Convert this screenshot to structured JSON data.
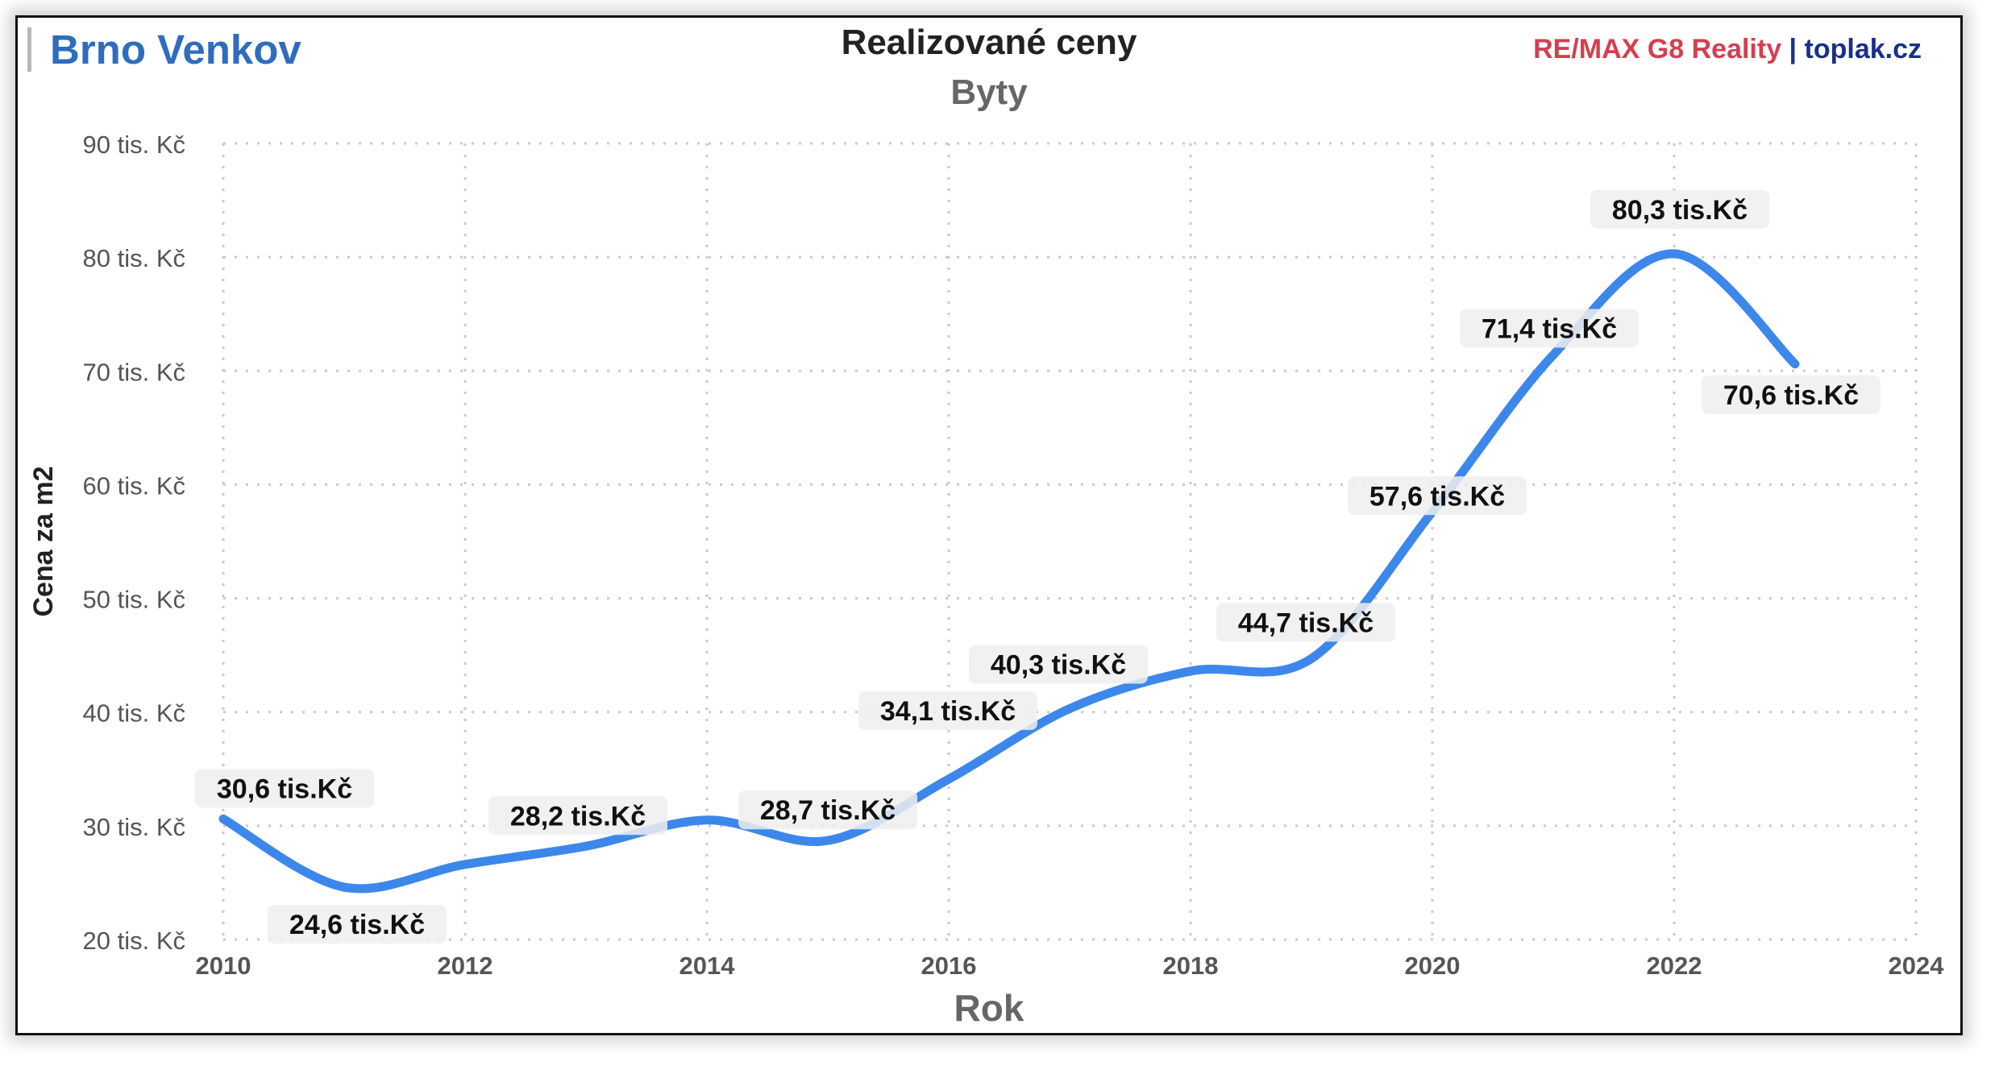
{
  "header": {
    "brand": "Brno Venkov",
    "credit_remax": "RE/MAX G8 Reality",
    "credit_sep": " | ",
    "credit_site": "toplak.cz"
  },
  "colors": {
    "brand": "#2e6cbf",
    "line": "#3d87ea",
    "credit_red": "#d43f4f",
    "credit_blue": "#1a2f8a",
    "label_bg": "#eeeeee"
  },
  "chart_data": {
    "type": "line",
    "title": "Realizované ceny",
    "subtitle": "Byty",
    "xlabel": "Rok",
    "ylabel": "Cena za m2",
    "xlim": [
      2010,
      2024
    ],
    "ylim": [
      20,
      90
    ],
    "x_ticks": [
      2010,
      2012,
      2014,
      2016,
      2018,
      2020,
      2022,
      2024
    ],
    "x_tick_labels": [
      "2010",
      "2012",
      "2014",
      "2016",
      "2018",
      "2020",
      "2022",
      "2024"
    ],
    "y_ticks": [
      20,
      30,
      40,
      50,
      60,
      70,
      80,
      90
    ],
    "y_tick_labels": [
      "20 tis. Kč",
      "30 tis. Kč",
      "40 tis. Kč",
      "50 tis. Kč",
      "60 tis. Kč",
      "70 tis. Kč",
      "80 tis. Kč",
      "90 tis. Kč"
    ],
    "grid": true,
    "smooth": true,
    "x": [
      2010,
      2011,
      2012,
      2013,
      2014,
      2015,
      2016,
      2017,
      2018,
      2019,
      2020,
      2021,
      2022,
      2023
    ],
    "y": [
      30.6,
      24.6,
      26.6,
      28.2,
      30.5,
      28.7,
      34.1,
      40.3,
      43.6,
      44.7,
      57.6,
      71.4,
      80.3,
      70.6
    ],
    "data_labels": [
      {
        "x": 2010,
        "text": "30,6 tis.Kč"
      },
      {
        "x": 2011,
        "text": "24,6 tis.Kč"
      },
      {
        "x": 2013,
        "text": "28,2 tis.Kč"
      },
      {
        "x": 2015,
        "text": "28,7 tis.Kč"
      },
      {
        "x": 2016,
        "text": "34,1 tis.Kč"
      },
      {
        "x": 2017,
        "text": "40,3 tis.Kč"
      },
      {
        "x": 2019,
        "text": "44,7 tis.Kč"
      },
      {
        "x": 2020,
        "text": "57,6 tis.Kč"
      },
      {
        "x": 2021,
        "text": "71,4 tis.Kč"
      },
      {
        "x": 2022,
        "text": "80,3 tis.Kč"
      },
      {
        "x": 2023,
        "text": "70,6 tis.Kč"
      }
    ]
  }
}
